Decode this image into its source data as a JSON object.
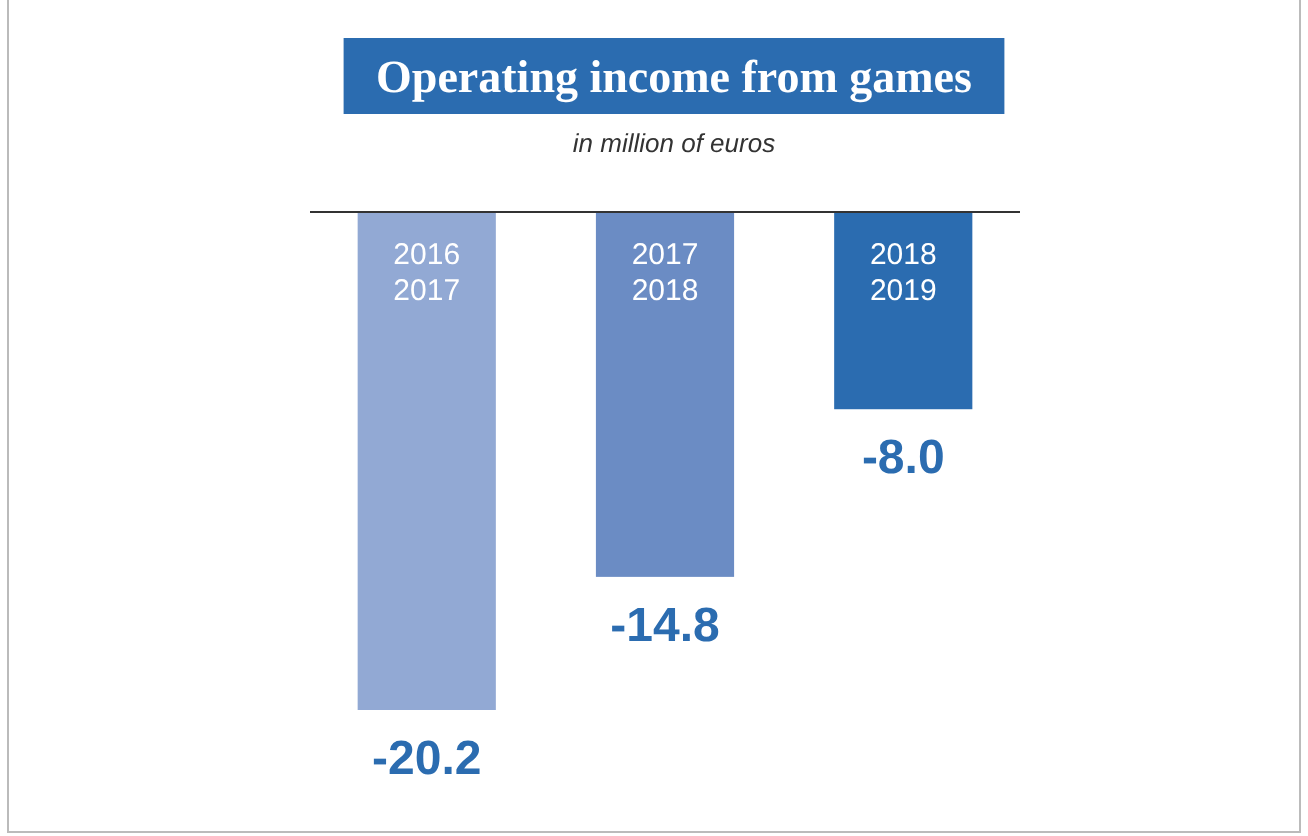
{
  "chart_data": {
    "type": "bar",
    "title": "Operating income from games",
    "subtitle": "in million of euros",
    "categories": [
      "2016\n2017",
      "2017\n2018",
      "2018\n2019"
    ],
    "values": [
      -20.2,
      -14.8,
      -8.0
    ],
    "colors": [
      "#92a9d4",
      "#6b8cc4",
      "#2b6cb0"
    ],
    "value_labels": [
      "-20.2",
      "-14.8",
      "-8.0"
    ]
  }
}
